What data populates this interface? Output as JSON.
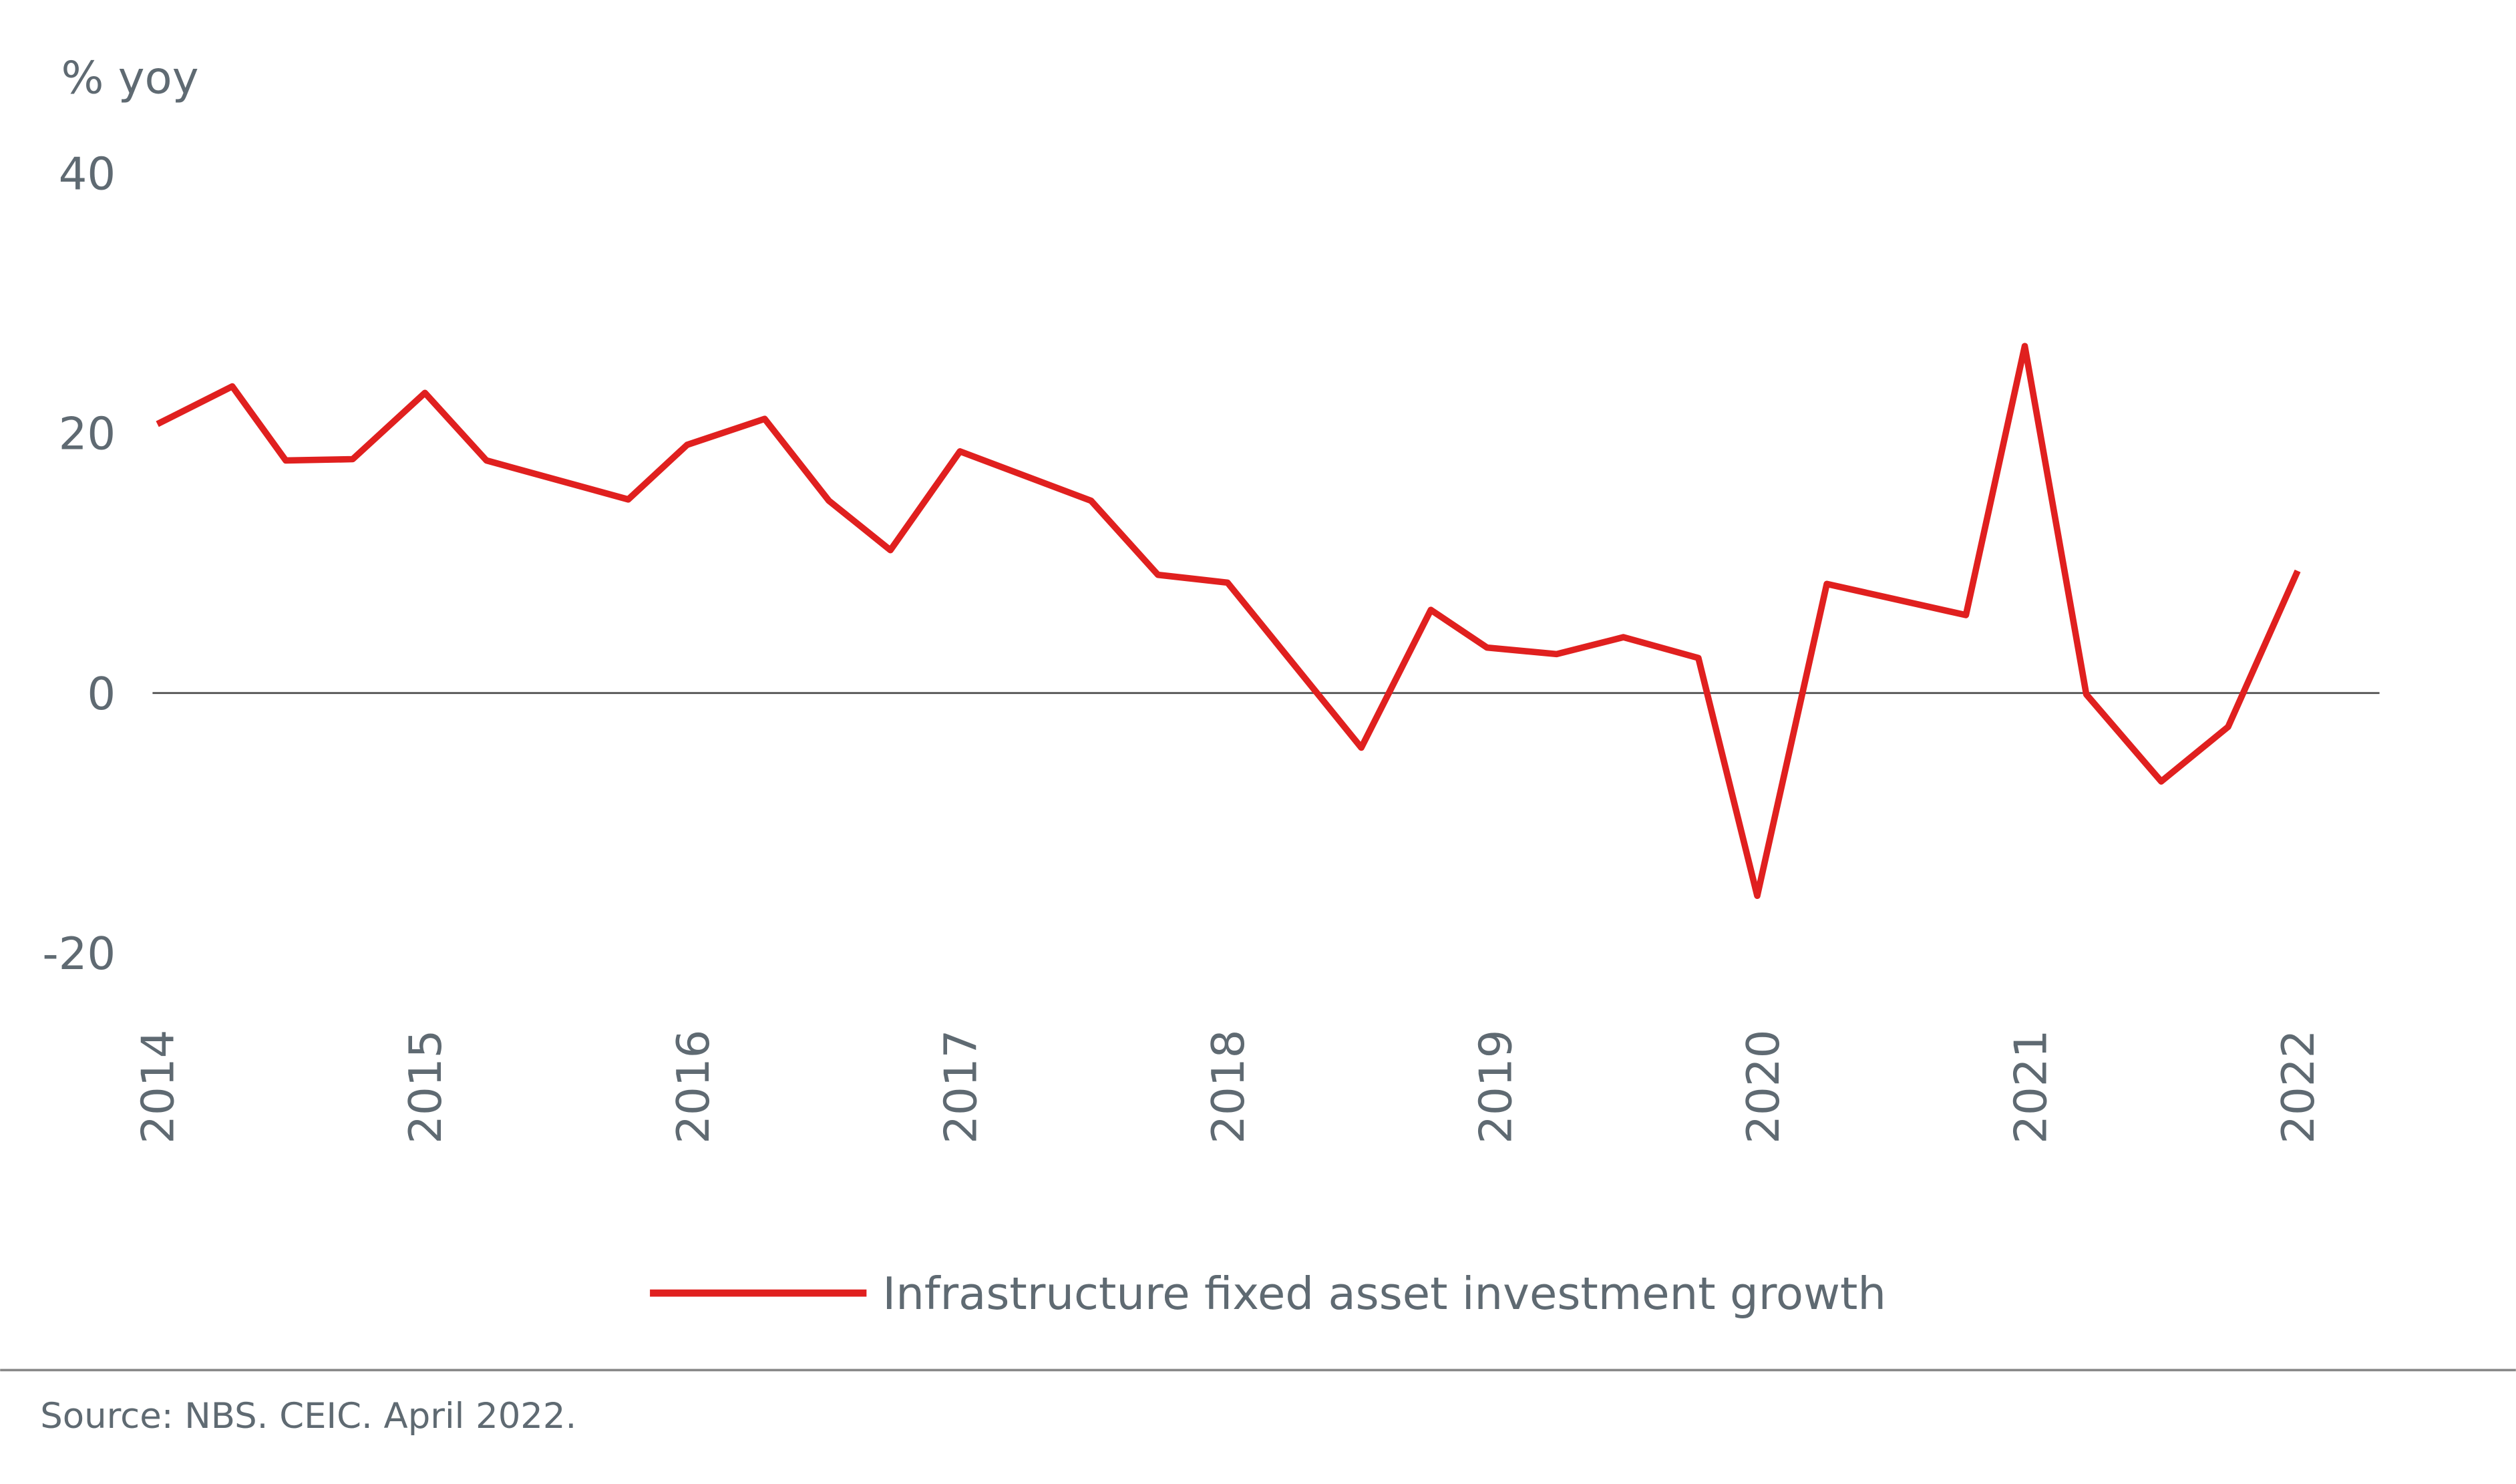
{
  "chart_data": {
    "type": "line",
    "y_label": "% yoy",
    "x": [
      2014.0,
      2014.28,
      2014.48,
      2014.73,
      2015.0,
      2015.23,
      2015.76,
      2015.98,
      2016.27,
      2016.51,
      2016.74,
      2017.0,
      2017.49,
      2017.74,
      2018.0,
      2018.5,
      2018.76,
      2018.97,
      2019.23,
      2019.48,
      2019.76,
      2019.98,
      2020.24,
      2020.76,
      2020.98,
      2021.21,
      2021.49,
      2021.74,
      2022.0
    ],
    "series": [
      {
        "name": "Infrastructure fixed asset investment growth",
        "color": "#e0201f",
        "values": [
          20.7,
          23.6,
          17.9,
          18.0,
          23.1,
          17.9,
          14.9,
          19.1,
          21.1,
          14.8,
          11.0,
          18.6,
          14.8,
          9.1,
          8.5,
          -4.2,
          6.4,
          3.5,
          3.0,
          4.3,
          2.7,
          -15.6,
          8.4,
          6.0,
          26.7,
          -0.1,
          -6.8,
          -2.6,
          9.4
        ]
      }
    ],
    "xlim": [
      2014,
      2022
    ],
    "xticks": [
      2014,
      2015,
      2016,
      2017,
      2018,
      2019,
      2020,
      2021,
      2022
    ],
    "ylim": [
      -20,
      40
    ],
    "yticks": [
      -20,
      0,
      20,
      40
    ],
    "zero_line": true,
    "source": "Source: NBS. CEIC. April 2022."
  }
}
